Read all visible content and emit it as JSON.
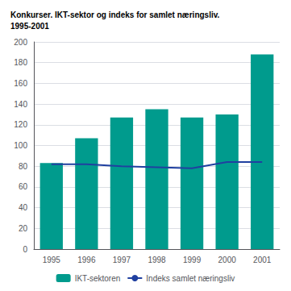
{
  "chart_data": {
    "type": "bar",
    "title": "Konkurser. IKT-sektor og indeks for samlet næringsliv.\n1995-2001",
    "categories": [
      "1995",
      "1996",
      "1997",
      "1998",
      "1999",
      "2000",
      "2001"
    ],
    "series": [
      {
        "name": "IKT-sektoren",
        "type": "bar",
        "color": "#009B8D",
        "values": [
          83,
          107,
          127,
          135,
          127,
          130,
          188
        ]
      },
      {
        "name": "Indeks samlet næringsliv",
        "type": "line",
        "color": "#2040A0",
        "values": [
          82,
          82,
          80,
          79,
          78,
          84,
          84
        ]
      }
    ],
    "ylim": [
      0,
      200
    ],
    "yticks": [
      0,
      20,
      40,
      60,
      80,
      100,
      120,
      140,
      160,
      180,
      200
    ],
    "grid": true,
    "legend": "bottom"
  }
}
